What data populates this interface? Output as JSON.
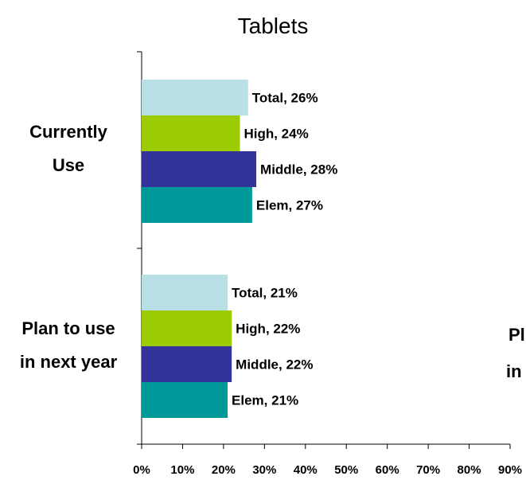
{
  "chart_data": {
    "type": "bar",
    "orientation": "horizontal",
    "title": "Tablets",
    "categories": [
      "Currently Use",
      "Plan to use in next year"
    ],
    "category_lines": [
      [
        "Currently",
        "Use"
      ],
      [
        "Plan to use",
        "in next year"
      ]
    ],
    "series": [
      {
        "name": "Total",
        "color": "#B9E0E5",
        "values": [
          26,
          21
        ]
      },
      {
        "name": "High",
        "color": "#9BCB00",
        "values": [
          24,
          22
        ]
      },
      {
        "name": "Middle",
        "color": "#333399",
        "values": [
          28,
          22
        ]
      },
      {
        "name": "Elem",
        "color": "#009999",
        "values": [
          27,
          21
        ]
      }
    ],
    "data_labels": [
      [
        "Total, 26%",
        "High, 24%",
        "Middle, 28%",
        "Elem, 27%"
      ],
      [
        "Total, 21%",
        "High, 22%",
        "Middle, 22%",
        "Elem, 21%"
      ]
    ],
    "xlim": [
      0,
      90
    ],
    "xticks": [
      0,
      10,
      20,
      30,
      40,
      50,
      60,
      70,
      80,
      90
    ],
    "xtick_labels": [
      "0%",
      "10%",
      "20%",
      "30%",
      "40%",
      "50%",
      "60%",
      "70%",
      "80%",
      "90%"
    ],
    "grid": false,
    "legend": "none",
    "partial_text_right": [
      "Pl",
      "in"
    ]
  }
}
